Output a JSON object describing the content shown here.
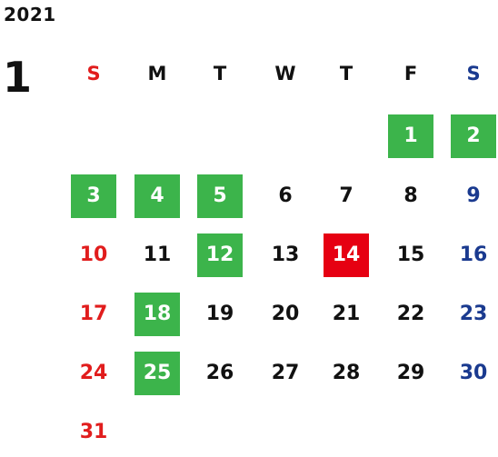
{
  "calendar": {
    "year": "2021",
    "month": "1",
    "weekdays": [
      "S",
      "M",
      "T",
      "W",
      "T",
      "F",
      "S"
    ],
    "colors": {
      "sunday": "#e11d1d",
      "saturday": "#1a3a8f",
      "weekday": "#111111",
      "highlight_green": "#3cb44b",
      "highlight_red": "#e60012",
      "highlight_text": "#ffffff"
    },
    "first_weekday_index": 5,
    "days": [
      {
        "day": "1",
        "highlight": "green"
      },
      {
        "day": "2",
        "highlight": "green"
      },
      {
        "day": "3",
        "highlight": "green"
      },
      {
        "day": "4",
        "highlight": "green"
      },
      {
        "day": "5",
        "highlight": "green"
      },
      {
        "day": "6",
        "highlight": "none"
      },
      {
        "day": "7",
        "highlight": "none"
      },
      {
        "day": "8",
        "highlight": "none"
      },
      {
        "day": "9",
        "highlight": "none"
      },
      {
        "day": "10",
        "highlight": "none"
      },
      {
        "day": "11",
        "highlight": "none"
      },
      {
        "day": "12",
        "highlight": "green"
      },
      {
        "day": "13",
        "highlight": "none"
      },
      {
        "day": "14",
        "highlight": "red"
      },
      {
        "day": "15",
        "highlight": "none"
      },
      {
        "day": "16",
        "highlight": "none"
      },
      {
        "day": "17",
        "highlight": "none"
      },
      {
        "day": "18",
        "highlight": "green"
      },
      {
        "day": "19",
        "highlight": "none"
      },
      {
        "day": "20",
        "highlight": "none"
      },
      {
        "day": "21",
        "highlight": "none"
      },
      {
        "day": "22",
        "highlight": "none"
      },
      {
        "day": "23",
        "highlight": "none"
      },
      {
        "day": "24",
        "highlight": "none"
      },
      {
        "day": "25",
        "highlight": "green"
      },
      {
        "day": "26",
        "highlight": "none"
      },
      {
        "day": "27",
        "highlight": "none"
      },
      {
        "day": "28",
        "highlight": "none"
      },
      {
        "day": "29",
        "highlight": "none"
      },
      {
        "day": "30",
        "highlight": "none"
      },
      {
        "day": "31",
        "highlight": "none"
      }
    ]
  }
}
